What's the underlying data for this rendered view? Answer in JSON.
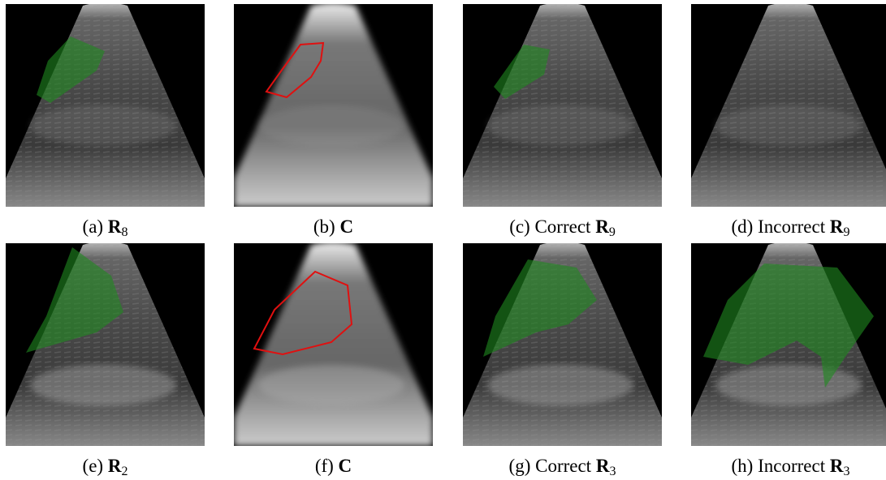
{
  "panels": [
    {
      "label": "(a)",
      "symbol": "R",
      "subscript": "8"
    },
    {
      "label": "(b)",
      "symbol": "C"
    },
    {
      "label": "(c)",
      "prefix": "Correct",
      "symbol": "R",
      "subscript": "9"
    },
    {
      "label": "(d)",
      "prefix": "Incorrect",
      "symbol": "R",
      "subscript": "9"
    },
    {
      "label": "(e)",
      "symbol": "R",
      "subscript": "2"
    },
    {
      "label": "(f)",
      "symbol": "C"
    },
    {
      "label": "(g)",
      "prefix": "Correct",
      "symbol": "R",
      "subscript": "3"
    },
    {
      "label": "(h)",
      "prefix": "Incorrect",
      "symbol": "R",
      "subscript": "3"
    }
  ]
}
